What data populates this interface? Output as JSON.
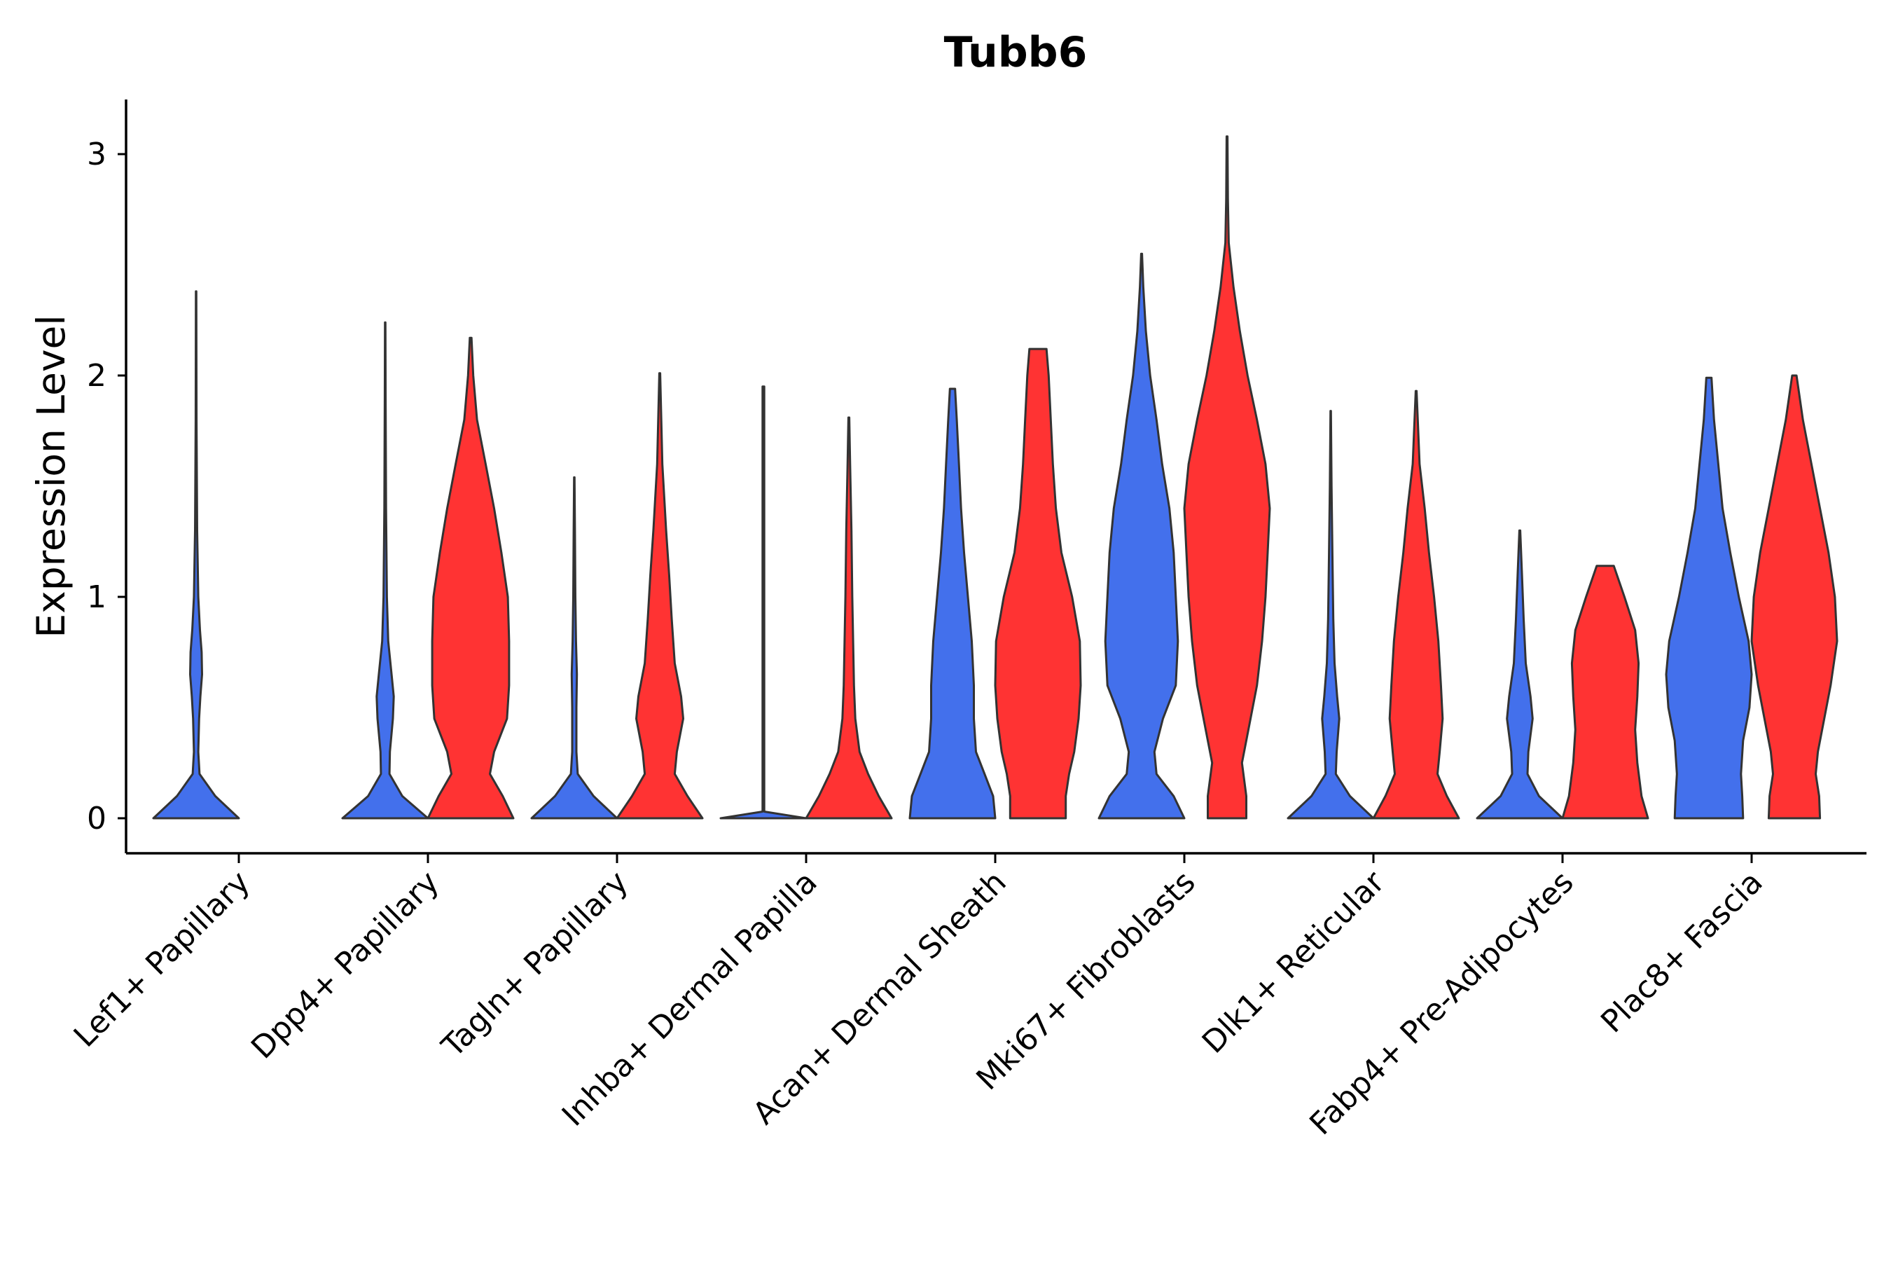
{
  "chart_data": {
    "type": "violin",
    "title": "Tubb6",
    "xlabel": "",
    "ylabel": "Expression Level",
    "ylim": [
      -0.15,
      3.25
    ],
    "yticks": [
      0,
      1,
      2,
      3
    ],
    "grid": false,
    "legend": "none",
    "colors": {
      "group1": "#4370EC",
      "group2": "#FF3333",
      "outline": "#333333"
    },
    "categories": [
      "Lef1+ Papillary",
      "Dpp4+ Papillary",
      "Tagln+ Papillary",
      "Inhba+ Dermal Papilla",
      "Acan+ Dermal Sheath",
      "Mki67+ Fibroblasts",
      "Dlk1+ Reticular",
      "Fabp4+ Pre-Adipocytes",
      "Plac8+ Fascia"
    ],
    "series": [
      {
        "name": "group1",
        "color": "#4370EC",
        "violins": [
          {
            "max": 2.38,
            "profile": [
              [
                0,
                1.0
              ],
              [
                0.1,
                0.45
              ],
              [
                0.2,
                0.08
              ],
              [
                0.3,
                0.05
              ],
              [
                0.45,
                0.07
              ],
              [
                0.55,
                0.1
              ],
              [
                0.65,
                0.14
              ],
              [
                0.75,
                0.13
              ],
              [
                0.85,
                0.09
              ],
              [
                1.0,
                0.05
              ],
              [
                1.3,
                0.025
              ],
              [
                1.8,
                0.01
              ],
              [
                2.38,
                0.005
              ]
            ]
          },
          {
            "max": 2.24,
            "profile": [
              [
                0,
                1.0
              ],
              [
                0.1,
                0.4
              ],
              [
                0.2,
                0.1
              ],
              [
                0.3,
                0.11
              ],
              [
                0.45,
                0.18
              ],
              [
                0.55,
                0.2
              ],
              [
                0.65,
                0.15
              ],
              [
                0.8,
                0.07
              ],
              [
                1.0,
                0.04
              ],
              [
                1.4,
                0.02
              ],
              [
                1.9,
                0.01
              ],
              [
                2.24,
                0.005
              ]
            ]
          },
          {
            "max": 1.54,
            "profile": [
              [
                0,
                1.0
              ],
              [
                0.1,
                0.45
              ],
              [
                0.2,
                0.08
              ],
              [
                0.3,
                0.05
              ],
              [
                0.5,
                0.05
              ],
              [
                0.65,
                0.06
              ],
              [
                0.8,
                0.04
              ],
              [
                1.0,
                0.025
              ],
              [
                1.3,
                0.015
              ],
              [
                1.54,
                0.005
              ]
            ]
          },
          {
            "max": 1.95,
            "profile": [
              [
                0,
                1.0
              ],
              [
                0.03,
                0.02
              ],
              [
                0.1,
                0.02
              ],
              [
                0.5,
                0.02
              ],
              [
                1.0,
                0.02
              ],
              [
                1.5,
                0.02
              ],
              [
                1.95,
                0.02
              ]
            ]
          },
          {
            "max": 1.94,
            "profile": [
              [
                0,
                1.0
              ],
              [
                0.1,
                0.95
              ],
              [
                0.2,
                0.75
              ],
              [
                0.3,
                0.55
              ],
              [
                0.45,
                0.5
              ],
              [
                0.6,
                0.5
              ],
              [
                0.8,
                0.45
              ],
              [
                1.0,
                0.36
              ],
              [
                1.2,
                0.27
              ],
              [
                1.4,
                0.2
              ],
              [
                1.6,
                0.15
              ],
              [
                1.8,
                0.1
              ],
              [
                1.94,
                0.06
              ]
            ]
          },
          {
            "max": 2.55,
            "profile": [
              [
                0,
                1.0
              ],
              [
                0.1,
                0.75
              ],
              [
                0.2,
                0.35
              ],
              [
                0.3,
                0.3
              ],
              [
                0.45,
                0.5
              ],
              [
                0.6,
                0.8
              ],
              [
                0.8,
                0.85
              ],
              [
                1.0,
                0.8
              ],
              [
                1.2,
                0.75
              ],
              [
                1.4,
                0.65
              ],
              [
                1.6,
                0.48
              ],
              [
                1.8,
                0.35
              ],
              [
                2.0,
                0.2
              ],
              [
                2.2,
                0.1
              ],
              [
                2.4,
                0.04
              ],
              [
                2.55,
                0.01
              ]
            ]
          },
          {
            "max": 1.84,
            "profile": [
              [
                0,
                1.0
              ],
              [
                0.1,
                0.45
              ],
              [
                0.2,
                0.12
              ],
              [
                0.3,
                0.14
              ],
              [
                0.45,
                0.2
              ],
              [
                0.55,
                0.15
              ],
              [
                0.7,
                0.09
              ],
              [
                0.9,
                0.06
              ],
              [
                1.2,
                0.04
              ],
              [
                1.5,
                0.02
              ],
              [
                1.84,
                0.005
              ]
            ]
          },
          {
            "max": 1.3,
            "profile": [
              [
                0,
                1.0
              ],
              [
                0.1,
                0.45
              ],
              [
                0.2,
                0.18
              ],
              [
                0.3,
                0.2
              ],
              [
                0.45,
                0.3
              ],
              [
                0.55,
                0.25
              ],
              [
                0.7,
                0.14
              ],
              [
                0.9,
                0.09
              ],
              [
                1.1,
                0.05
              ],
              [
                1.3,
                0.01
              ]
            ]
          },
          {
            "max": 1.99,
            "profile": [
              [
                0,
                0.8
              ],
              [
                0.1,
                0.78
              ],
              [
                0.2,
                0.75
              ],
              [
                0.35,
                0.8
              ],
              [
                0.5,
                0.95
              ],
              [
                0.65,
                1.0
              ],
              [
                0.8,
                0.93
              ],
              [
                1.0,
                0.7
              ],
              [
                1.2,
                0.5
              ],
              [
                1.4,
                0.32
              ],
              [
                1.6,
                0.22
              ],
              [
                1.8,
                0.12
              ],
              [
                1.99,
                0.06
              ]
            ]
          }
        ]
      },
      {
        "name": "group2",
        "color": "#FF3333",
        "violins": [
          null,
          {
            "max": 2.17,
            "profile": [
              [
                0,
                1.0
              ],
              [
                0.1,
                0.75
              ],
              [
                0.2,
                0.45
              ],
              [
                0.3,
                0.55
              ],
              [
                0.45,
                0.85
              ],
              [
                0.6,
                0.9
              ],
              [
                0.8,
                0.9
              ],
              [
                1.0,
                0.87
              ],
              [
                1.2,
                0.72
              ],
              [
                1.4,
                0.55
              ],
              [
                1.6,
                0.35
              ],
              [
                1.8,
                0.15
              ],
              [
                2.0,
                0.06
              ],
              [
                2.17,
                0.02
              ]
            ]
          },
          {
            "max": 2.01,
            "profile": [
              [
                0,
                1.0
              ],
              [
                0.1,
                0.65
              ],
              [
                0.2,
                0.35
              ],
              [
                0.3,
                0.4
              ],
              [
                0.45,
                0.55
              ],
              [
                0.55,
                0.5
              ],
              [
                0.7,
                0.35
              ],
              [
                0.9,
                0.28
              ],
              [
                1.1,
                0.22
              ],
              [
                1.3,
                0.15
              ],
              [
                1.6,
                0.06
              ],
              [
                2.01,
                0.01
              ]
            ]
          },
          {
            "max": 1.81,
            "profile": [
              [
                0,
                1.0
              ],
              [
                0.1,
                0.7
              ],
              [
                0.2,
                0.45
              ],
              [
                0.3,
                0.25
              ],
              [
                0.45,
                0.15
              ],
              [
                0.6,
                0.12
              ],
              [
                0.8,
                0.1
              ],
              [
                1.0,
                0.08
              ],
              [
                1.3,
                0.06
              ],
              [
                1.6,
                0.03
              ],
              [
                1.81,
                0.01
              ]
            ]
          },
          {
            "max": 2.12,
            "profile": [
              [
                0,
                0.65
              ],
              [
                0.1,
                0.65
              ],
              [
                0.2,
                0.73
              ],
              [
                0.3,
                0.85
              ],
              [
                0.45,
                0.95
              ],
              [
                0.6,
                1.0
              ],
              [
                0.8,
                0.98
              ],
              [
                1.0,
                0.8
              ],
              [
                1.2,
                0.55
              ],
              [
                1.4,
                0.42
              ],
              [
                1.6,
                0.35
              ],
              [
                1.8,
                0.3
              ],
              [
                2.0,
                0.25
              ],
              [
                2.12,
                0.2
              ]
            ]
          },
          {
            "max": 3.08,
            "profile": [
              [
                0,
                0.45
              ],
              [
                0.1,
                0.45
              ],
              [
                0.25,
                0.35
              ],
              [
                0.4,
                0.5
              ],
              [
                0.6,
                0.7
              ],
              [
                0.8,
                0.82
              ],
              [
                1.0,
                0.9
              ],
              [
                1.2,
                0.95
              ],
              [
                1.4,
                1.0
              ],
              [
                1.6,
                0.9
              ],
              [
                1.8,
                0.7
              ],
              [
                2.0,
                0.48
              ],
              [
                2.2,
                0.3
              ],
              [
                2.4,
                0.15
              ],
              [
                2.6,
                0.04
              ],
              [
                2.8,
                0.02
              ],
              [
                3.08,
                0.01
              ]
            ]
          },
          {
            "max": 1.93,
            "profile": [
              [
                0,
                1.0
              ],
              [
                0.1,
                0.72
              ],
              [
                0.2,
                0.5
              ],
              [
                0.3,
                0.55
              ],
              [
                0.45,
                0.62
              ],
              [
                0.6,
                0.58
              ],
              [
                0.8,
                0.52
              ],
              [
                1.0,
                0.42
              ],
              [
                1.2,
                0.3
              ],
              [
                1.4,
                0.2
              ],
              [
                1.6,
                0.08
              ],
              [
                1.93,
                0.01
              ]
            ]
          },
          {
            "max": 1.14,
            "profile": [
              [
                0,
                1.0
              ],
              [
                0.1,
                0.85
              ],
              [
                0.25,
                0.75
              ],
              [
                0.4,
                0.7
              ],
              [
                0.55,
                0.75
              ],
              [
                0.7,
                0.78
              ],
              [
                0.85,
                0.7
              ],
              [
                1.0,
                0.45
              ],
              [
                1.14,
                0.2
              ]
            ]
          },
          {
            "max": 2.0,
            "profile": [
              [
                0,
                0.6
              ],
              [
                0.1,
                0.58
              ],
              [
                0.2,
                0.5
              ],
              [
                0.3,
                0.55
              ],
              [
                0.45,
                0.7
              ],
              [
                0.6,
                0.85
              ],
              [
                0.8,
                1.0
              ],
              [
                1.0,
                0.95
              ],
              [
                1.2,
                0.8
              ],
              [
                1.4,
                0.6
              ],
              [
                1.6,
                0.4
              ],
              [
                1.8,
                0.2
              ],
              [
                2.0,
                0.05
              ]
            ]
          }
        ]
      }
    ]
  }
}
